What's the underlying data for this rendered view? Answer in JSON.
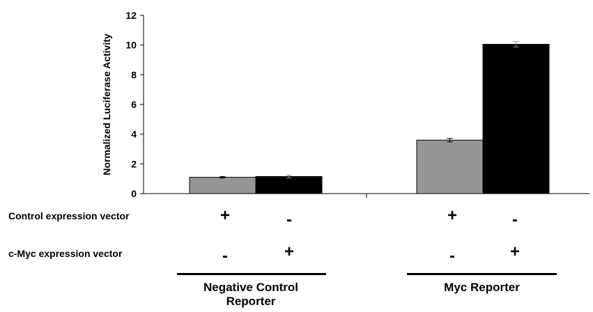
{
  "chart_data": {
    "type": "bar",
    "title": "",
    "xlabel": "",
    "ylabel": "Normalized Luciferase Activity",
    "ylim": [
      0,
      12
    ],
    "yticks": [
      "0",
      "2",
      "4",
      "6",
      "8",
      "10",
      "12"
    ],
    "grid": false,
    "categories": [
      "Negative Control Reporter",
      "Myc Reporter"
    ],
    "series": [
      {
        "color": "#969696",
        "values": [
          1.1,
          3.6
        ],
        "errors": [
          0.05,
          0.12
        ]
      },
      {
        "color": "#000000",
        "values": [
          1.15,
          10.05
        ],
        "errors": [
          0.1,
          0.18
        ]
      }
    ]
  },
  "conditions": {
    "rows": [
      {
        "label": "Control expression vector",
        "signs": [
          "+",
          "-",
          "+",
          "-"
        ]
      },
      {
        "label": "c-Myc expression vector",
        "signs": [
          "-",
          "+",
          "-",
          "+"
        ]
      }
    ]
  },
  "groups": [
    {
      "label": "Negative Control Reporter"
    },
    {
      "label": "Myc Reporter"
    }
  ]
}
